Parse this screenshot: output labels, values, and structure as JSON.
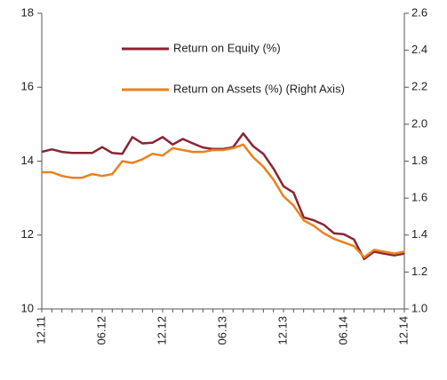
{
  "chart_data": {
    "type": "line",
    "categories": [
      "12.11",
      null,
      null,
      null,
      null,
      null,
      "06.12",
      null,
      null,
      null,
      null,
      null,
      "12.12",
      null,
      null,
      null,
      null,
      null,
      "06.13",
      null,
      null,
      null,
      null,
      null,
      "12.13",
      null,
      null,
      null,
      null,
      null,
      "06.14",
      null,
      null,
      null,
      null,
      null,
      "12.14"
    ],
    "series": [
      {
        "name": "Return on Equity (%)",
        "color": "#8b2332",
        "values": [
          14.25,
          14.32,
          14.25,
          14.22,
          14.22,
          14.22,
          14.38,
          14.22,
          14.2,
          14.65,
          14.48,
          14.5,
          14.65,
          14.45,
          14.6,
          14.48,
          14.37,
          14.33,
          14.33,
          14.38,
          14.75,
          14.4,
          14.2,
          13.8,
          13.32,
          13.15,
          12.48,
          12.4,
          12.28,
          12.05,
          12.02,
          11.88,
          11.35,
          11.55,
          11.5,
          11.45,
          11.5
        ]
      },
      {
        "name": "Return on Assets (%) (Right Axis)",
        "color": "#e8821e",
        "axis": "y2",
        "values": [
          1.74,
          1.74,
          1.72,
          1.71,
          1.71,
          1.73,
          1.72,
          1.73,
          1.8,
          1.79,
          1.81,
          1.84,
          1.83,
          1.87,
          1.86,
          1.85,
          1.85,
          1.86,
          1.86,
          1.87,
          1.89,
          1.82,
          1.77,
          1.7,
          1.61,
          1.56,
          1.48,
          1.45,
          1.41,
          1.38,
          1.36,
          1.34,
          1.28,
          1.32,
          1.31,
          1.3,
          1.31
        ]
      }
    ],
    "ylim": [
      10,
      18
    ],
    "yticks": [
      10,
      12,
      14,
      16,
      18
    ],
    "y2lim": [
      1.0,
      2.6
    ],
    "y2ticks": [
      {
        "value": 1.0,
        "label": "1.0"
      },
      1.2,
      1.4,
      1.6,
      1.8,
      {
        "value": 2.0,
        "label": "2.0"
      },
      2.2,
      2.4,
      2.6
    ],
    "legend": "top"
  }
}
